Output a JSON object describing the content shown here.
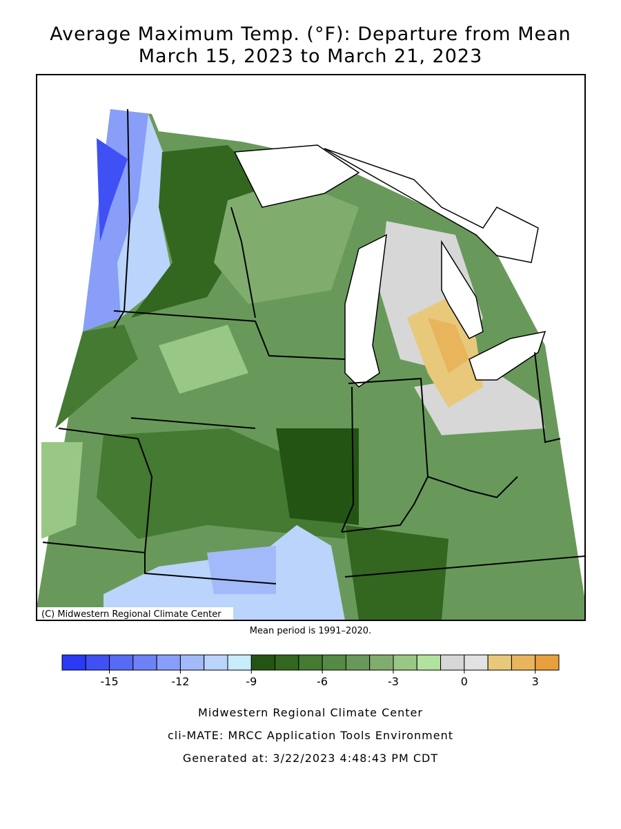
{
  "header": {
    "title_line1": "Average Maximum Temp. (°F): Departure from Mean",
    "title_line2": "March 15, 2023 to March 21, 2023"
  },
  "map": {
    "credit": "(C) Midwestern Regional Climate Center",
    "note": "Mean period is 1991–2020."
  },
  "legend": {
    "lim": [
      -17,
      4
    ],
    "colors": [
      "#2b3af5",
      "#3f50f5",
      "#566af5",
      "#6c82f6",
      "#889ef8",
      "#a2baf9",
      "#bad4fb",
      "#c8ecfa",
      "#245414",
      "#33661f",
      "#447a31",
      "#558a45",
      "#68995a",
      "#80ad6e",
      "#99c785",
      "#b3e29f",
      "#d7d7d7",
      "#e2e2e2",
      "#e8c87a",
      "#e8b55c",
      "#e8a03c"
    ],
    "ticks": [
      -15,
      -12,
      -9,
      -6,
      -3,
      0,
      3
    ]
  },
  "footer": {
    "line1": "Midwestern Regional Climate Center",
    "line2": "cli-MATE: MRCC Application Tools Environment",
    "line3": "Generated at: 3/22/2023 4:48:43 PM CDT"
  }
}
